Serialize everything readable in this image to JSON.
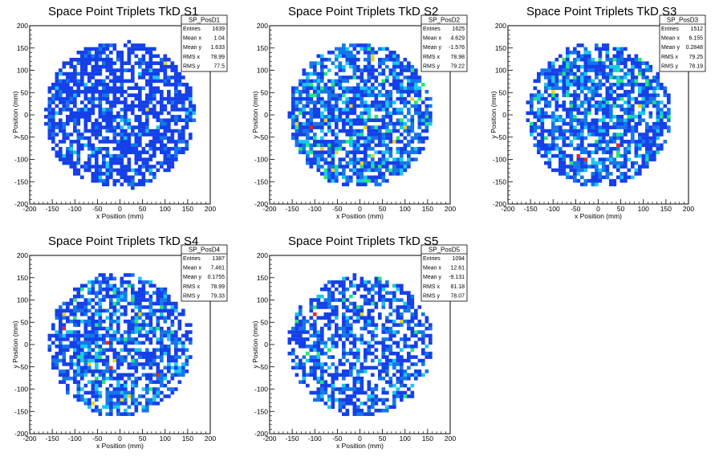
{
  "palette": [
    "#1540e8",
    "#1577e8",
    "#19c7f2",
    "#1ee87a",
    "#e8d21e",
    "#e8281e"
  ],
  "chart_data": [
    {
      "type": "heatmap",
      "title": "Space Point Triplets TkD S1",
      "xlabel": "x Position (mm)",
      "ylabel": "y Position (mm)",
      "xlim": [
        -200,
        200
      ],
      "ylim": [
        -200,
        200
      ],
      "xticks": [
        -200,
        -150,
        -100,
        -50,
        0,
        50,
        100,
        150,
        200
      ],
      "yticks": [
        -200,
        -150,
        -100,
        -50,
        0,
        50,
        100,
        150,
        200
      ],
      "stats": {
        "name": "SP_PosD1",
        "rows": [
          {
            "label": "Entries",
            "value": "1639"
          },
          {
            "label": "Mean x",
            "value": "1.04"
          },
          {
            "label": "Mean y",
            "value": "1.633"
          },
          {
            "label": "RMS x",
            "value": "78.99"
          },
          {
            "label": "RMS y",
            "value": "77.5"
          }
        ]
      },
      "entries": 1639,
      "radius_mm": 165,
      "bin_mm": 8
    },
    {
      "type": "heatmap",
      "title": "Space Point Triplets TkD S2",
      "xlabel": "x Position (mm)",
      "ylabel": "y Position (mm)",
      "xlim": [
        -200,
        200
      ],
      "ylim": [
        -200,
        200
      ],
      "xticks": [
        -200,
        -150,
        -100,
        -50,
        0,
        50,
        100,
        150,
        200
      ],
      "yticks": [
        -200,
        -150,
        -100,
        -50,
        0,
        50,
        100,
        150,
        200
      ],
      "stats": {
        "name": "SP_PosD2",
        "rows": [
          {
            "label": "Entries",
            "value": "1625"
          },
          {
            "label": "Mean x",
            "value": "4.629"
          },
          {
            "label": "Mean y",
            "value": "-1.576"
          },
          {
            "label": "RMS x",
            "value": "78.98"
          },
          {
            "label": "RMS y",
            "value": "79.22"
          }
        ]
      },
      "entries": 1625,
      "radius_mm": 160,
      "bin_mm": 8
    },
    {
      "type": "heatmap",
      "title": "Space Point Triplets TkD S3",
      "xlabel": "x Position (mm)",
      "ylabel": "y Position (mm)",
      "xlim": [
        -200,
        200
      ],
      "ylim": [
        -200,
        200
      ],
      "xticks": [
        -200,
        -150,
        -100,
        -50,
        0,
        50,
        100,
        150,
        200
      ],
      "yticks": [
        -200,
        -150,
        -100,
        -50,
        0,
        50,
        100,
        150,
        200
      ],
      "stats": {
        "name": "SP_PosD3",
        "rows": [
          {
            "label": "Entries",
            "value": "1512"
          },
          {
            "label": "Mean x",
            "value": "6.155"
          },
          {
            "label": "Mean y",
            "value": "0.2848"
          },
          {
            "label": "RMS x",
            "value": "79.25"
          },
          {
            "label": "RMS y",
            "value": "78.19"
          }
        ]
      },
      "entries": 1512,
      "radius_mm": 160,
      "bin_mm": 8
    },
    {
      "type": "heatmap",
      "title": "Space Point Triplets TkD S4",
      "xlabel": "x Position (mm)",
      "ylabel": "y Position (mm)",
      "xlim": [
        -200,
        200
      ],
      "ylim": [
        -200,
        200
      ],
      "xticks": [
        -200,
        -150,
        -100,
        -50,
        0,
        50,
        100,
        150,
        200
      ],
      "yticks": [
        -200,
        -150,
        -100,
        -50,
        0,
        50,
        100,
        150,
        200
      ],
      "stats": {
        "name": "SP_PosD4",
        "rows": [
          {
            "label": "Entries",
            "value": "1387"
          },
          {
            "label": "Mean x",
            "value": "7.461"
          },
          {
            "label": "Mean y",
            "value": "0.1755"
          },
          {
            "label": "RMS x",
            "value": "78.99"
          },
          {
            "label": "RMS y",
            "value": "79.33"
          }
        ]
      },
      "entries": 1387,
      "radius_mm": 160,
      "bin_mm": 8
    },
    {
      "type": "heatmap",
      "title": "Space Point Triplets TkD S5",
      "xlabel": "x Position (mm)",
      "ylabel": "y Position (mm)",
      "xlim": [
        -200,
        200
      ],
      "ylim": [
        -200,
        200
      ],
      "xticks": [
        -200,
        -150,
        -100,
        -50,
        0,
        50,
        100,
        150,
        200
      ],
      "yticks": [
        -200,
        -150,
        -100,
        -50,
        0,
        50,
        100,
        150,
        200
      ],
      "stats": {
        "name": "SP_PosD5",
        "rows": [
          {
            "label": "Entries",
            "value": "1094"
          },
          {
            "label": "Mean x",
            "value": "12.61"
          },
          {
            "label": "Mean y",
            "value": "-9.131"
          },
          {
            "label": "RMS x",
            "value": "81.18"
          },
          {
            "label": "RMS y",
            "value": "78.07"
          }
        ]
      },
      "entries": 1094,
      "radius_mm": 160,
      "bin_mm": 8
    }
  ]
}
